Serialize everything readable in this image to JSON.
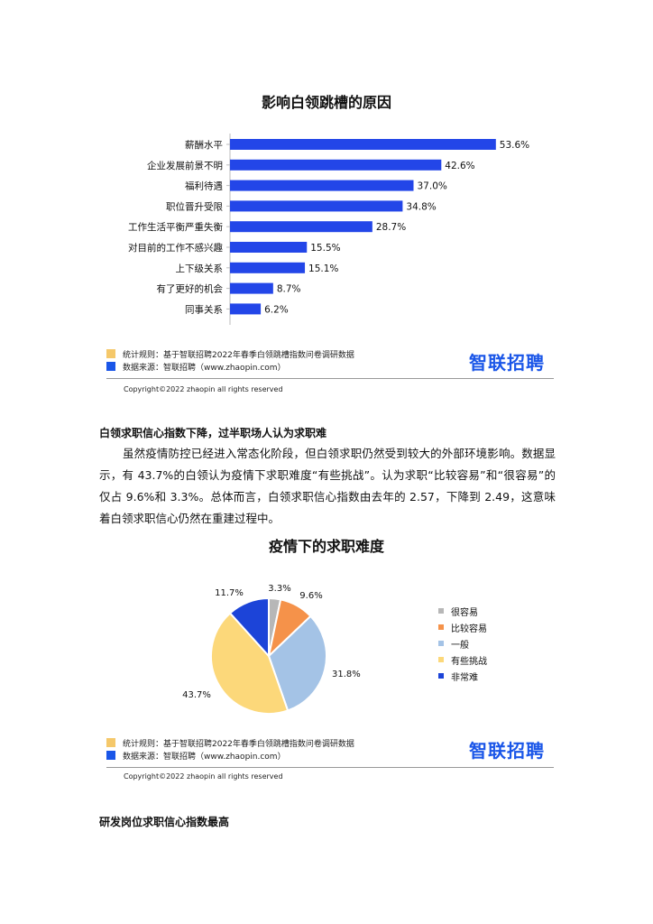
{
  "bar_chart": {
    "title": "影响白领跳槽的原因",
    "value_suffix": "%"
  },
  "pie_chart": {
    "title": "疫情下的求职难度"
  },
  "footer": {
    "rule_label": "统计规则：基于智联招聘2022年春季白领跳槽指数问卷调研数据",
    "source_label": "数据来源：智联招聘（www.zhaopin.com）",
    "brand": "智联招聘",
    "copyright": "Copyright©2022 zhaopin all rights reserved",
    "rule_color": "#f5c86a",
    "source_color": "#1a56e8"
  },
  "section1": {
    "heading": "白领求职信心指数下降，过半职场人认为求职难",
    "paragraph": "虽然疫情防控已经进入常态化阶段，但白领求职仍然受到较大的外部环境影响。数据显示，有 43.7%的白领认为疫情下求职难度“有些挑战”。认为求职“比较容易”和“很容易”的仅占 9.6%和 3.3%。总体而言，白领求职信心指数由去年的 2.57，下降到 2.49，这意味着白领求职信心仍然在重建过程中。"
  },
  "section2": {
    "heading": "研发岗位求职信心指数最高"
  },
  "chart_data": [
    {
      "type": "bar",
      "orientation": "horizontal",
      "title": "影响白领跳槽的原因",
      "categories": [
        "薪酬水平",
        "企业发展前景不明",
        "福利待遇",
        "职位晋升受限",
        "工作生活平衡严重失衡",
        "对目前的工作不感兴趣",
        "上下级关系",
        "有了更好的机会",
        "同事关系"
      ],
      "values": [
        53.6,
        42.6,
        37.0,
        34.8,
        28.7,
        15.5,
        15.1,
        8.7,
        6.2
      ],
      "labels": [
        "53.6%",
        "42.6%",
        "37.0%",
        "34.8%",
        "28.7%",
        "15.5%",
        "15.1%",
        "8.7%",
        "6.2%"
      ],
      "bar_color": "#2346e8",
      "xlim": [
        0,
        60
      ]
    },
    {
      "type": "pie",
      "title": "疫情下的求职难度",
      "categories": [
        "很容易",
        "比较容易",
        "一般",
        "有些挑战",
        "非常难"
      ],
      "values": [
        3.3,
        9.6,
        31.8,
        43.7,
        11.7
      ],
      "labels": [
        "3.3%",
        "9.6%",
        "31.8%",
        "43.7%",
        "11.7%"
      ],
      "colors": [
        "#b7b7b7",
        "#f5924a",
        "#a4c3e6",
        "#fcd87a",
        "#1c44d8"
      ],
      "legend": "right"
    }
  ]
}
